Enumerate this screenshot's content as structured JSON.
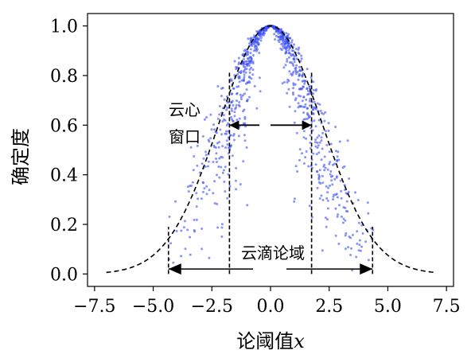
{
  "chart_data": {
    "type": "scatter",
    "xlabel": "论阈值",
    "xlabel_var": "x",
    "ylabel": "确定度",
    "xlim": [
      -7.8,
      7.8
    ],
    "ylim": [
      -0.05,
      1.05
    ],
    "x_ticks": [
      -7.5,
      -5.0,
      -2.5,
      0.0,
      2.5,
      5.0,
      7.5
    ],
    "x_tick_labels": [
      "−7.5",
      "−5.0",
      "−2.5",
      "0.0",
      "2.5",
      "5.0",
      "7.5"
    ],
    "y_ticks": [
      0.0,
      0.2,
      0.4,
      0.6,
      0.8,
      1.0
    ],
    "y_tick_labels": [
      "0.0",
      "0.2",
      "0.4",
      "0.6",
      "0.8",
      "1.0"
    ],
    "grid": false,
    "envelope": {
      "style": "dashed",
      "color": "#000000",
      "mean": 0,
      "sigma": 2.2,
      "x_range": [
        -7,
        7
      ]
    },
    "drops": {
      "color": "#3b4ff5",
      "count": 1000,
      "mean": 0,
      "entropy": 1.8,
      "hyper_entropy": 0.45,
      "x_range": [
        -4.4,
        4.4
      ]
    },
    "core_window": {
      "x": [
        -1.75,
        1.75
      ],
      "height": 0.82,
      "arrow_y": 0.6,
      "label_line1": "云心",
      "label_line2": "窗口"
    },
    "universe_window": {
      "x": [
        -4.35,
        4.35
      ],
      "height": 0.19,
      "arrow_y": 0.02,
      "label": "云滴论域"
    }
  }
}
